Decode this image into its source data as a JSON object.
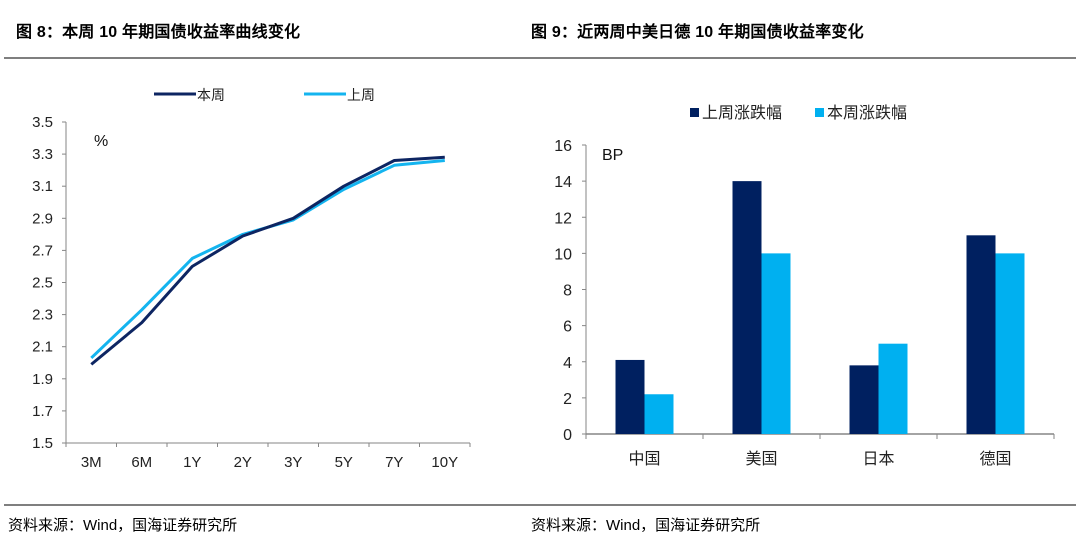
{
  "figures": {
    "left": {
      "title": "图 8：本周 10 年期国债收益率曲线变化",
      "source": "资料来源：Wind，国海证券研究所"
    },
    "right": {
      "title": "图 9：近两周中美日德 10 年期国债收益率变化",
      "source": "资料来源：Wind，国海证券研究所"
    }
  },
  "colors": {
    "dark_navy": "#0d2562",
    "light_blue": "#14b4ef",
    "bar_dark": "#002060",
    "bar_light": "#00b0f0",
    "axis": "#868686"
  },
  "chart_data": [
    {
      "type": "line",
      "title": "本周 10 年期国债收益率曲线变化",
      "unit_label": "%",
      "xlabel": "",
      "ylabel": "%",
      "categories": [
        "3M",
        "6M",
        "1Y",
        "2Y",
        "3Y",
        "5Y",
        "7Y",
        "10Y"
      ],
      "series": [
        {
          "name": "本周",
          "color": "#0d2562",
          "values": [
            1.99,
            2.25,
            2.6,
            2.79,
            2.9,
            3.1,
            3.26,
            3.28
          ]
        },
        {
          "name": "上周",
          "color": "#14b4ef",
          "values": [
            2.03,
            2.33,
            2.65,
            2.8,
            2.89,
            3.08,
            3.23,
            3.26
          ]
        }
      ],
      "ylim": [
        1.5,
        3.5
      ],
      "yticks": [
        "1.5",
        "1.7",
        "1.9",
        "2.1",
        "2.3",
        "2.5",
        "2.7",
        "2.9",
        "3.1",
        "3.3",
        "3.5"
      ],
      "legend_position": "top",
      "grid": false
    },
    {
      "type": "bar",
      "title": "近两周中美日德 10 年期国债收益率变化",
      "unit_label": "BP",
      "xlabel": "",
      "ylabel": "BP",
      "categories": [
        "中国",
        "美国",
        "日本",
        "德国"
      ],
      "series": [
        {
          "name": "上周涨跌幅",
          "color": "#002060",
          "values": [
            4.1,
            14,
            3.8,
            11
          ]
        },
        {
          "name": "本周涨跌幅",
          "color": "#00b0f0",
          "values": [
            2.2,
            10,
            5.0,
            10
          ]
        }
      ],
      "ylim": [
        0,
        16
      ],
      "yticks": [
        "0",
        "2",
        "4",
        "6",
        "8",
        "10",
        "12",
        "14",
        "16"
      ],
      "legend_position": "top",
      "grid": false
    }
  ]
}
